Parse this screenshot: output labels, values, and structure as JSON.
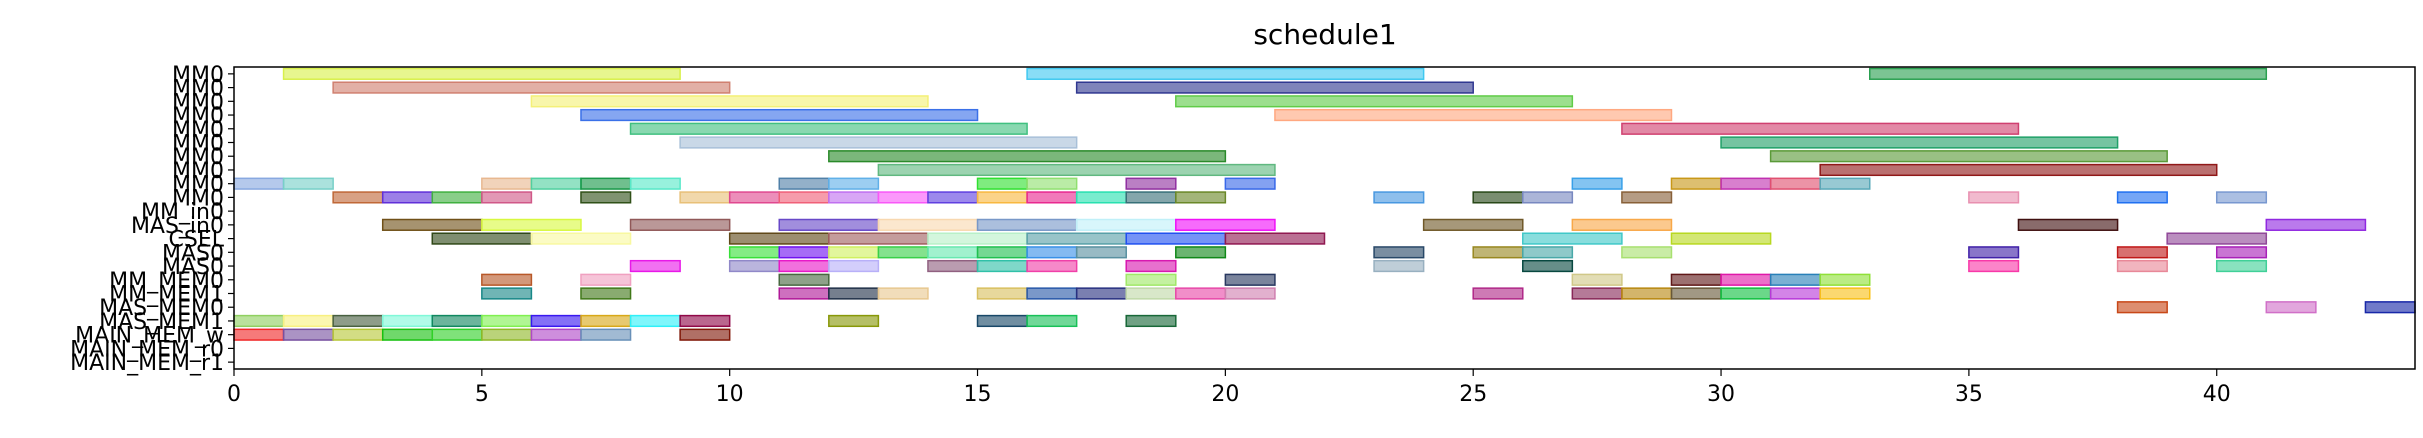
{
  "chart_data": {
    "type": "bar",
    "title": "schedule1",
    "xlabel": "",
    "ylabel": "",
    "xlim": [
      0,
      44
    ],
    "x_ticks": [
      0,
      5,
      10,
      15,
      20,
      25,
      30,
      35,
      40
    ],
    "rows": [
      "MM0",
      "MM0",
      "MM0",
      "MM0",
      "MM0",
      "MM0",
      "MM0",
      "MM0",
      "MM0",
      "MM0",
      "MM_in0",
      "MAS_in0",
      "CSEL",
      "MAS0",
      "MAS0",
      "MM_MEM0",
      "MM_MEM1",
      "MAS_MEM0",
      "MAS_MEM1",
      "MAIN_MEM_w",
      "MAIN_MEM_r0",
      "MAIN_MEM_r1"
    ],
    "tasks": [
      {
        "row": 0,
        "start": 1,
        "end": 9,
        "color": "#d8f04a"
      },
      {
        "row": 0,
        "start": 16,
        "end": 24,
        "color": "#40c8f0"
      },
      {
        "row": 0,
        "start": 33,
        "end": 41,
        "color": "#2aa050"
      },
      {
        "row": 1,
        "start": 2,
        "end": 10,
        "color": "#d08070"
      },
      {
        "row": 1,
        "start": 17,
        "end": 25,
        "color": "#303890"
      },
      {
        "row": 2,
        "start": 6,
        "end": 14,
        "color": "#f4f078"
      },
      {
        "row": 2,
        "start": 19,
        "end": 27,
        "color": "#60cc48"
      },
      {
        "row": 3,
        "start": 7,
        "end": 15,
        "color": "#3a70e8"
      },
      {
        "row": 3,
        "start": 21,
        "end": 29,
        "color": "#ffa880"
      },
      {
        "row": 4,
        "start": 8,
        "end": 16,
        "color": "#40c080"
      },
      {
        "row": 4,
        "start": 28,
        "end": 36,
        "color": "#d04070"
      },
      {
        "row": 5,
        "start": 9,
        "end": 17,
        "color": "#a8c0d8"
      },
      {
        "row": 5,
        "start": 30,
        "end": 38,
        "color": "#20a068"
      },
      {
        "row": 6,
        "start": 12,
        "end": 20,
        "color": "#2a8a2a"
      },
      {
        "row": 6,
        "start": 31,
        "end": 39,
        "color": "#5a9a38"
      },
      {
        "row": 7,
        "start": 13,
        "end": 21,
        "color": "#60b880"
      },
      {
        "row": 7,
        "start": 32,
        "end": 40,
        "color": "#901818"
      },
      {
        "row": 8,
        "start": 0,
        "end": 1,
        "color": "#88a8e0"
      },
      {
        "row": 8,
        "start": 1,
        "end": 2,
        "color": "#78d0c8"
      },
      {
        "row": 8,
        "start": 5,
        "end": 6,
        "color": "#e8b890"
      },
      {
        "row": 8,
        "start": 6,
        "end": 7,
        "color": "#50d0a0"
      },
      {
        "row": 8,
        "start": 7,
        "end": 8,
        "color": "#189848"
      },
      {
        "row": 8,
        "start": 8,
        "end": 9,
        "color": "#58e8c8"
      },
      {
        "row": 8,
        "start": 11,
        "end": 12,
        "color": "#5080a8"
      },
      {
        "row": 8,
        "start": 12,
        "end": 13,
        "color": "#60b0e8"
      },
      {
        "row": 8,
        "start": 15,
        "end": 16,
        "color": "#30e030"
      },
      {
        "row": 8,
        "start": 16,
        "end": 17,
        "color": "#90e070"
      },
      {
        "row": 8,
        "start": 18,
        "end": 19,
        "color": "#9030a0"
      },
      {
        "row": 8,
        "start": 20,
        "end": 21,
        "color": "#3868e8"
      },
      {
        "row": 8,
        "start": 27,
        "end": 28,
        "color": "#38a0e8"
      },
      {
        "row": 8,
        "start": 29,
        "end": 30,
        "color": "#c89818"
      },
      {
        "row": 8,
        "start": 30,
        "end": 31,
        "color": "#c030b0"
      },
      {
        "row": 8,
        "start": 31,
        "end": 32,
        "color": "#e05070"
      },
      {
        "row": 8,
        "start": 32,
        "end": 33,
        "color": "#58a8b8"
      },
      {
        "row": 9,
        "start": 2,
        "end": 3,
        "color": "#c06838"
      },
      {
        "row": 9,
        "start": 3,
        "end": 4,
        "color": "#6030d8"
      },
      {
        "row": 9,
        "start": 4,
        "end": 5,
        "color": "#40b040"
      },
      {
        "row": 9,
        "start": 5,
        "end": 6,
        "color": "#d05888"
      },
      {
        "row": 9,
        "start": 7,
        "end": 8,
        "color": "#305018"
      },
      {
        "row": 9,
        "start": 9,
        "end": 10,
        "color": "#e8c078"
      },
      {
        "row": 9,
        "start": 10,
        "end": 11,
        "color": "#e04890"
      },
      {
        "row": 9,
        "start": 11,
        "end": 12,
        "color": "#f06078"
      },
      {
        "row": 9,
        "start": 12,
        "end": 13,
        "color": "#c070f0"
      },
      {
        "row": 9,
        "start": 13,
        "end": 14,
        "color": "#f858f8"
      },
      {
        "row": 9,
        "start": 14,
        "end": 15,
        "color": "#6040e0"
      },
      {
        "row": 9,
        "start": 15,
        "end": 16,
        "color": "#f8b840"
      },
      {
        "row": 9,
        "start": 16,
        "end": 17,
        "color": "#e82890"
      },
      {
        "row": 9,
        "start": 17,
        "end": 18,
        "color": "#28e0b0"
      },
      {
        "row": 9,
        "start": 18,
        "end": 19,
        "color": "#387078"
      },
      {
        "row": 9,
        "start": 19,
        "end": 20,
        "color": "#6a8828"
      },
      {
        "row": 9,
        "start": 23,
        "end": 24,
        "color": "#4898e0"
      },
      {
        "row": 9,
        "start": 25,
        "end": 26,
        "color": "#284818"
      },
      {
        "row": 9,
        "start": 26,
        "end": 27,
        "color": "#7888c0"
      },
      {
        "row": 9,
        "start": 28,
        "end": 29,
        "color": "#886038"
      },
      {
        "row": 9,
        "start": 35,
        "end": 36,
        "color": "#e890b0"
      },
      {
        "row": 9,
        "start": 38,
        "end": 39,
        "color": "#2070f0"
      },
      {
        "row": 9,
        "start": 40,
        "end": 41,
        "color": "#7898d0"
      },
      {
        "row": 11,
        "start": 3,
        "end": 5,
        "color": "#705018"
      },
      {
        "row": 11,
        "start": 5,
        "end": 7,
        "color": "#d8f840"
      },
      {
        "row": 11,
        "start": 8,
        "end": 10,
        "color": "#905858"
      },
      {
        "row": 11,
        "start": 11,
        "end": 13,
        "color": "#6848c8"
      },
      {
        "row": 11,
        "start": 13,
        "end": 15,
        "color": "#f8d8b0"
      },
      {
        "row": 11,
        "start": 15,
        "end": 17,
        "color": "#7898c8"
      },
      {
        "row": 11,
        "start": 17,
        "end": 19,
        "color": "#c0f0f8"
      },
      {
        "row": 11,
        "start": 19,
        "end": 21,
        "color": "#f010f8"
      },
      {
        "row": 11,
        "start": 24,
        "end": 26,
        "color": "#705828"
      },
      {
        "row": 11,
        "start": 27,
        "end": 29,
        "color": "#f8a848"
      },
      {
        "row": 11,
        "start": 36,
        "end": 38,
        "color": "#401010"
      },
      {
        "row": 11,
        "start": 41,
        "end": 43,
        "color": "#9028e0"
      },
      {
        "row": 12,
        "start": 4,
        "end": 6,
        "color": "#304818"
      },
      {
        "row": 12,
        "start": 6,
        "end": 8,
        "color": "#f8f8a0"
      },
      {
        "row": 12,
        "start": 10,
        "end": 12,
        "color": "#604818"
      },
      {
        "row": 12,
        "start": 12,
        "end": 14,
        "color": "#a06060"
      },
      {
        "row": 12,
        "start": 14,
        "end": 16,
        "color": "#b8f0c8"
      },
      {
        "row": 12,
        "start": 16,
        "end": 18,
        "color": "#58a0a8"
      },
      {
        "row": 12,
        "start": 18,
        "end": 20,
        "color": "#2050f0"
      },
      {
        "row": 12,
        "start": 20,
        "end": 22,
        "color": "#901850"
      },
      {
        "row": 12,
        "start": 26,
        "end": 28,
        "color": "#40c8c8"
      },
      {
        "row": 12,
        "start": 29,
        "end": 31,
        "color": "#b8d820"
      },
      {
        "row": 12,
        "start": 39,
        "end": 41,
        "color": "#904898"
      },
      {
        "row": 13,
        "start": 10,
        "end": 11,
        "color": "#38e038"
      },
      {
        "row": 13,
        "start": 11,
        "end": 12,
        "color": "#7010f0"
      },
      {
        "row": 13,
        "start": 12,
        "end": 13,
        "color": "#d0f060"
      },
      {
        "row": 13,
        "start": 13,
        "end": 14,
        "color": "#38d048"
      },
      {
        "row": 13,
        "start": 14,
        "end": 15,
        "color": "#68e8b0"
      },
      {
        "row": 13,
        "start": 15,
        "end": 16,
        "color": "#20c050"
      },
      {
        "row": 13,
        "start": 16,
        "end": 17,
        "color": "#3890e8"
      },
      {
        "row": 13,
        "start": 17,
        "end": 18,
        "color": "#5890a0"
      },
      {
        "row": 13,
        "start": 19,
        "end": 20,
        "color": "#108818"
      },
      {
        "row": 13,
        "start": 23,
        "end": 24,
        "color": "#284868"
      },
      {
        "row": 13,
        "start": 25,
        "end": 26,
        "color": "#988820"
      },
      {
        "row": 13,
        "start": 26,
        "end": 27,
        "color": "#48a8a8"
      },
      {
        "row": 13,
        "start": 28,
        "end": 29,
        "color": "#a8e070"
      },
      {
        "row": 13,
        "start": 35,
        "end": 36,
        "color": "#4020a8"
      },
      {
        "row": 13,
        "start": 38,
        "end": 39,
        "color": "#c01818"
      },
      {
        "row": 13,
        "start": 40,
        "end": 41,
        "color": "#a820b8"
      },
      {
        "row": 14,
        "start": 8,
        "end": 9,
        "color": "#e818e8"
      },
      {
        "row": 14,
        "start": 10,
        "end": 11,
        "color": "#9088c8"
      },
      {
        "row": 14,
        "start": 11,
        "end": 12,
        "color": "#e818c8"
      },
      {
        "row": 14,
        "start": 12,
        "end": 13,
        "color": "#b8b0f8"
      },
      {
        "row": 14,
        "start": 14,
        "end": 15,
        "color": "#906080"
      },
      {
        "row": 14,
        "start": 15,
        "end": 16,
        "color": "#30c0a8"
      },
      {
        "row": 14,
        "start": 16,
        "end": 17,
        "color": "#f040a8"
      },
      {
        "row": 14,
        "start": 18,
        "end": 19,
        "color": "#d818b0"
      },
      {
        "row": 14,
        "start": 23,
        "end": 24,
        "color": "#98b0c0"
      },
      {
        "row": 14,
        "start": 26,
        "end": 27,
        "color": "#084840"
      },
      {
        "row": 14,
        "start": 35,
        "end": 36,
        "color": "#f838a8"
      },
      {
        "row": 14,
        "start": 38,
        "end": 39,
        "color": "#e88898"
      },
      {
        "row": 14,
        "start": 40,
        "end": 41,
        "color": "#40d098"
      },
      {
        "row": 15,
        "start": 5,
        "end": 6,
        "color": "#b85828"
      },
      {
        "row": 15,
        "start": 7,
        "end": 8,
        "color": "#f0a0c0"
      },
      {
        "row": 15,
        "start": 11,
        "end": 12,
        "color": "#486840"
      },
      {
        "row": 15,
        "start": 18,
        "end": 19,
        "color": "#a0e868"
      },
      {
        "row": 15,
        "start": 20,
        "end": 21,
        "color": "#283860"
      },
      {
        "row": 15,
        "start": 27,
        "end": 28,
        "color": "#d0c888"
      },
      {
        "row": 15,
        "start": 29,
        "end": 30,
        "color": "#601818"
      },
      {
        "row": 15,
        "start": 30,
        "end": 31,
        "color": "#e018a8"
      },
      {
        "row": 15,
        "start": 31,
        "end": 32,
        "color": "#2880b8"
      },
      {
        "row": 15,
        "start": 32,
        "end": 33,
        "color": "#90e038"
      },
      {
        "row": 16,
        "start": 5,
        "end": 6,
        "color": "#188888"
      },
      {
        "row": 16,
        "start": 7,
        "end": 8,
        "color": "#407818"
      },
      {
        "row": 16,
        "start": 11,
        "end": 12,
        "color": "#b01898"
      },
      {
        "row": 16,
        "start": 12,
        "end": 13,
        "color": "#203048"
      },
      {
        "row": 16,
        "start": 13,
        "end": 14,
        "color": "#e8c890"
      },
      {
        "row": 16,
        "start": 15,
        "end": 16,
        "color": "#d8c060"
      },
      {
        "row": 16,
        "start": 16,
        "end": 17,
        "color": "#2858a8"
      },
      {
        "row": 16,
        "start": 17,
        "end": 18,
        "color": "#283080"
      },
      {
        "row": 16,
        "start": 18,
        "end": 19,
        "color": "#c0d8a8"
      },
      {
        "row": 16,
        "start": 19,
        "end": 20,
        "color": "#e848a8"
      },
      {
        "row": 16,
        "start": 20,
        "end": 21,
        "color": "#d080b0"
      },
      {
        "row": 16,
        "start": 25,
        "end": 26,
        "color": "#b02888"
      },
      {
        "row": 16,
        "start": 27,
        "end": 28,
        "color": "#882858"
      },
      {
        "row": 16,
        "start": 28,
        "end": 29,
        "color": "#b88810"
      },
      {
        "row": 16,
        "start": 29,
        "end": 30,
        "color": "#685838"
      },
      {
        "row": 16,
        "start": 30,
        "end": 31,
        "color": "#10c040"
      },
      {
        "row": 16,
        "start": 31,
        "end": 32,
        "color": "#b838d8"
      },
      {
        "row": 16,
        "start": 32,
        "end": 33,
        "color": "#f8c018"
      },
      {
        "row": 17,
        "start": 38,
        "end": 39,
        "color": "#c84818"
      },
      {
        "row": 17,
        "start": 41,
        "end": 42,
        "color": "#d070c8"
      },
      {
        "row": 17,
        "start": 43,
        "end": 44,
        "color": "#1828a8"
      },
      {
        "row": 18,
        "start": 0,
        "end": 1,
        "color": "#90d060"
      },
      {
        "row": 18,
        "start": 1,
        "end": 2,
        "color": "#f8f080"
      },
      {
        "row": 18,
        "start": 2,
        "end": 3,
        "color": "#486040"
      },
      {
        "row": 18,
        "start": 3,
        "end": 4,
        "color": "#80f8d8"
      },
      {
        "row": 18,
        "start": 4,
        "end": 5,
        "color": "#108860"
      },
      {
        "row": 18,
        "start": 5,
        "end": 6,
        "color": "#80f050"
      },
      {
        "row": 18,
        "start": 6,
        "end": 7,
        "color": "#3818f0"
      },
      {
        "row": 18,
        "start": 7,
        "end": 8,
        "color": "#d8a818"
      },
      {
        "row": 18,
        "start": 8,
        "end": 9,
        "color": "#30f0f8"
      },
      {
        "row": 18,
        "start": 9,
        "end": 10,
        "color": "#900848"
      },
      {
        "row": 18,
        "start": 12,
        "end": 13,
        "color": "#889808"
      },
      {
        "row": 18,
        "start": 15,
        "end": 16,
        "color": "#184868"
      },
      {
        "row": 18,
        "start": 16,
        "end": 17,
        "color": "#18c058"
      },
      {
        "row": 18,
        "start": 18,
        "end": 19,
        "color": "#186838"
      },
      {
        "row": 19,
        "start": 0,
        "end": 1,
        "color": "#f02828"
      },
      {
        "row": 19,
        "start": 1,
        "end": 2,
        "color": "#7850a0"
      },
      {
        "row": 19,
        "start": 2,
        "end": 3,
        "color": "#b8c838"
      },
      {
        "row": 19,
        "start": 3,
        "end": 4,
        "color": "#18c010"
      },
      {
        "row": 19,
        "start": 4,
        "end": 5,
        "color": "#30d028"
      },
      {
        "row": 19,
        "start": 5,
        "end": 6,
        "color": "#90b828"
      },
      {
        "row": 19,
        "start": 6,
        "end": 7,
        "color": "#b048c8"
      },
      {
        "row": 19,
        "start": 7,
        "end": 8,
        "color": "#6890b8"
      },
      {
        "row": 19,
        "start": 9,
        "end": 10,
        "color": "#801808"
      }
    ]
  }
}
